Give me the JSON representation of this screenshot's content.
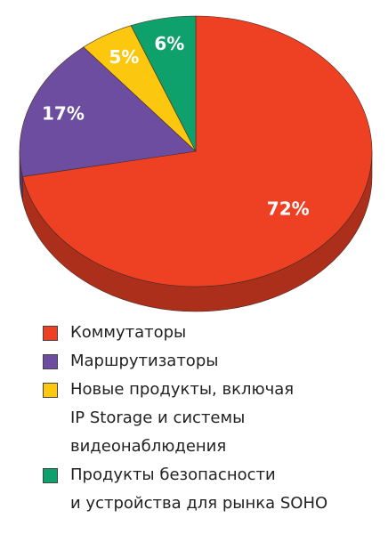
{
  "chart_data": {
    "type": "pie",
    "categories": [
      "Коммутаторы",
      "Маршрутизаторы",
      "Новые продукты, включая\nIP Storage и системы\nвидеонаблюдения",
      "Продукты безопасности\nи устройства для рынка SOHO"
    ],
    "values": [
      72,
      17,
      5,
      6
    ],
    "value_labels": [
      "72%",
      "17%",
      "5%",
      "6%"
    ],
    "colors": [
      "#ee4124",
      "#6c4d9f",
      "#fcc70f",
      "#0ea16b"
    ]
  }
}
